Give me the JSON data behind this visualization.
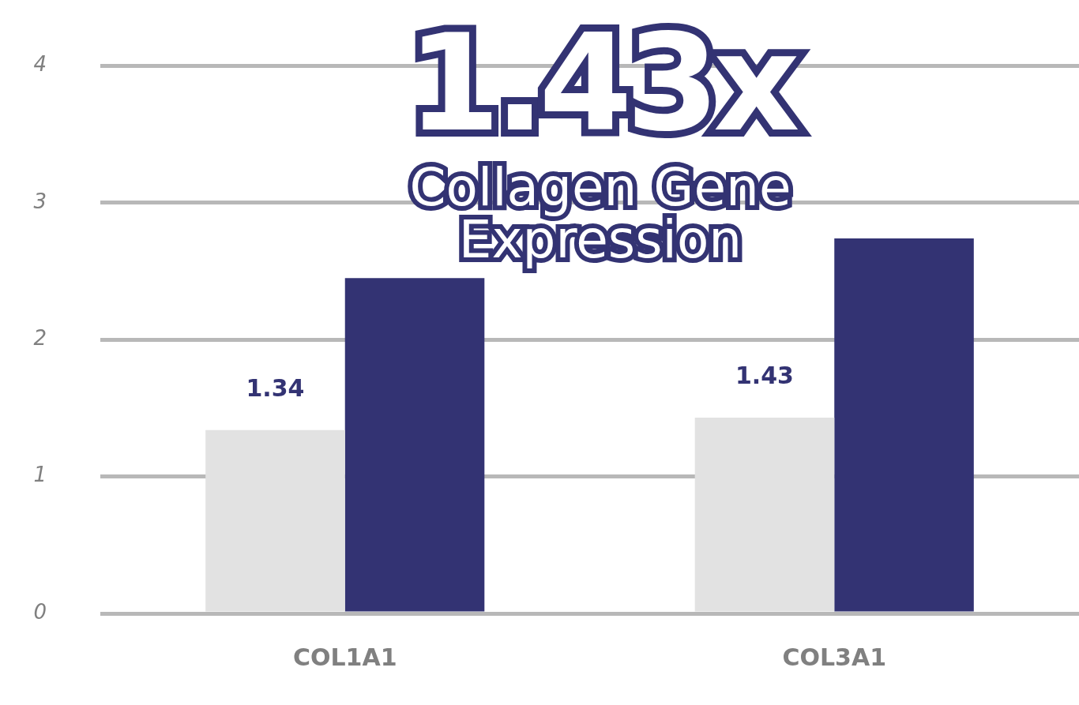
{
  "chart_data": {
    "type": "bar",
    "title": "1.43x",
    "subtitle": "Collagen Gene Expression",
    "categories": [
      "COL1A1",
      "COL3A1"
    ],
    "series": [
      {
        "color": "#e2e2e2",
        "values": [
          1.34,
          1.43
        ],
        "value_labels": [
          "1.34",
          "1.43"
        ]
      },
      {
        "color": "#333373",
        "values": [
          2.45,
          2.74
        ]
      }
    ],
    "ylim": [
      0,
      4
    ],
    "yticks": [
      0,
      1,
      2,
      3,
      4
    ],
    "grid": "y",
    "legend": false
  }
}
